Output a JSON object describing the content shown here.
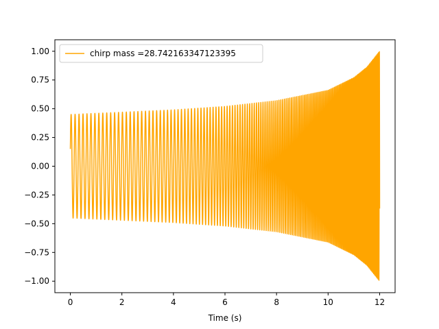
{
  "chart_data": {
    "type": "line",
    "xlabel": "Time (s)",
    "ylabel": "",
    "title": "",
    "xlim": [
      -0.6,
      12.6
    ],
    "ylim": [
      -1.1,
      1.1
    ],
    "xticks": [
      0,
      2,
      4,
      6,
      8,
      10,
      12
    ],
    "xtick_labels": [
      "0",
      "2",
      "4",
      "6",
      "8",
      "10",
      "12"
    ],
    "yticks": [
      -1.0,
      -0.75,
      -0.5,
      -0.25,
      0.0,
      0.25,
      0.5,
      0.75,
      1.0
    ],
    "ytick_labels": [
      "−1.00",
      "−0.75",
      "−0.50",
      "−0.25",
      "0.00",
      "0.25",
      "0.50",
      "0.75",
      "1.00"
    ],
    "grid": false,
    "legend_position": "upper-left",
    "series": [
      {
        "name": "chirp mass =28.742163347123395",
        "color": "#ffa500",
        "kind": "chirp",
        "x_range": [
          0,
          12
        ],
        "amplitude_envelope": {
          "t": [
            0,
            2,
            4,
            6,
            8,
            10,
            11,
            11.5,
            12
          ],
          "amp": [
            0.45,
            0.47,
            0.49,
            0.52,
            0.57,
            0.66,
            0.77,
            0.86,
            1.0
          ]
        },
        "start_value": 0.15,
        "frequency_start_hz": 6.5,
        "frequency_end_hz": 30
      }
    ]
  }
}
